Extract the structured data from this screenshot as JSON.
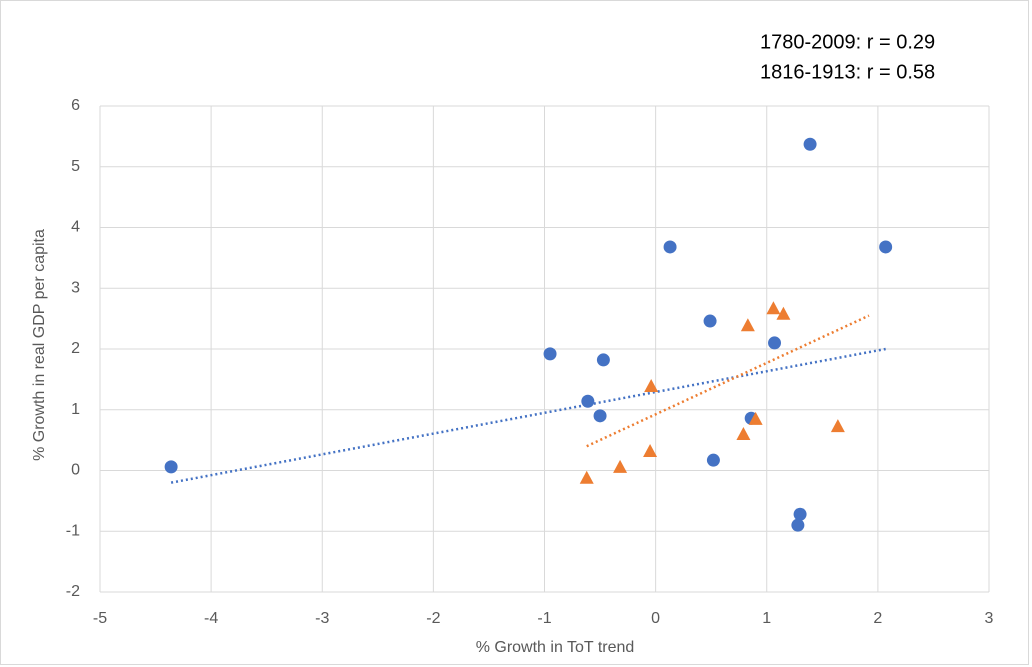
{
  "chart_data": {
    "type": "scatter",
    "x_label": "% Growth in ToT trend",
    "y_label": "% Growth in real GDP per capita",
    "annotations": [
      "1780-2009: r = 0.29",
      "1816-1913: r = 0.58"
    ],
    "xlim": [
      -5,
      3
    ],
    "xticks": [
      -5,
      -4,
      -3,
      -2,
      -1,
      0,
      1,
      2,
      3
    ],
    "ylim": [
      -2,
      6
    ],
    "yticks": [
      -2,
      -1,
      0,
      1,
      2,
      3,
      4,
      5,
      6
    ],
    "grid": true,
    "series": [
      {
        "color": "#4472c4",
        "marker": "circle",
        "x": [
          -4.36,
          -0.95,
          -0.47,
          -0.61,
          -0.5,
          0.13,
          0.49,
          0.52,
          1.07,
          0.86,
          1.39,
          2.07,
          1.3,
          1.28
        ],
        "values": [
          0.06,
          1.92,
          1.82,
          1.14,
          0.9,
          3.68,
          2.46,
          0.17,
          2.1,
          0.86,
          5.37,
          3.68,
          -0.72,
          -0.9
        ],
        "trend": {
          "x": [
            -4.36,
            2.07
          ],
          "values": [
            -0.2,
            2.0
          ]
        }
      },
      {
        "color": "#ed7d31",
        "marker": "triangle",
        "x": [
          -0.62,
          -0.32,
          -0.04,
          -0.05,
          0.83,
          1.06,
          1.15,
          0.79,
          0.9,
          1.64
        ],
        "values": [
          -0.12,
          0.06,
          1.39,
          0.32,
          2.39,
          2.67,
          2.58,
          0.6,
          0.85,
          0.73
        ],
        "trend": {
          "x": [
            -0.62,
            1.92
          ],
          "values": [
            0.4,
            2.55
          ]
        }
      }
    ]
  }
}
